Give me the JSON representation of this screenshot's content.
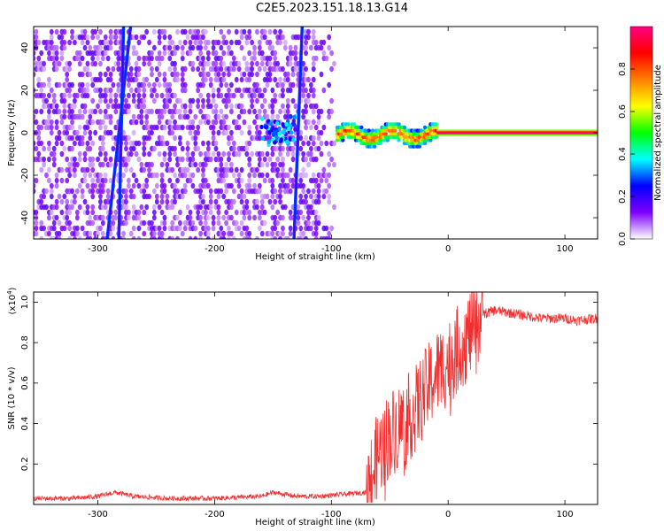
{
  "title": "C2E5.2023.151.18.13.G14",
  "chart_data": [
    {
      "type": "heatmap",
      "xlabel": "Height of straight line (km)",
      "ylabel": "Frequency (Hz)",
      "xlim": [
        -355,
        128
      ],
      "ylim": [
        -50,
        50
      ],
      "xticks": [
        -300,
        -200,
        -100,
        0,
        100
      ],
      "xtick_labels": [
        "-300",
        "-200",
        "-100",
        "0",
        "100"
      ],
      "yticks": [
        -40,
        -20,
        0,
        20,
        40
      ],
      "ytick_labels": [
        "-40",
        "-20",
        "0",
        "20",
        "40"
      ],
      "colorbar": {
        "label": "Normalized spectral amplitude",
        "range": [
          0,
          1
        ],
        "ticks": [
          0.0,
          0.2,
          0.4,
          0.6,
          0.8
        ],
        "tick_labels": [
          "0.0",
          "0.2",
          "0.4",
          "0.6",
          "0.8"
        ],
        "colors": [
          "#ffffff",
          "#7f00ff",
          "#0000ff",
          "#00ffff",
          "#00ff00",
          "#ffff00",
          "#ff7f00",
          "#ff0000",
          "#ff0080"
        ]
      },
      "carrier_line": {
        "frequency": 0,
        "x_start": -10,
        "x_end": 128,
        "amplitude": 1.0
      },
      "streaks": [
        {
          "x_at_ymin": -292,
          "x_at_ymax": -272
        },
        {
          "x_at_ymin": -282,
          "x_at_ymax": -278
        },
        {
          "x_at_ymin": -132,
          "x_at_ymax": -125
        }
      ],
      "noise_extent": [
        -355,
        -95
      ]
    },
    {
      "type": "line",
      "xlabel": "Height of straight line (km)",
      "ylabel": "SNR (10 * v/v)",
      "y_multiplier_label": "(x10",
      "y_multiplier_exponent": "4",
      "y_multiplier_close": ")",
      "xlim": [
        -355,
        128
      ],
      "ylim": [
        0,
        1.05
      ],
      "xticks": [
        -300,
        -200,
        -100,
        0,
        100
      ],
      "xtick_labels": [
        "-300",
        "-200",
        "-100",
        "0",
        "100"
      ],
      "yticks": [
        0.2,
        0.4,
        0.6,
        0.8,
        1.0
      ],
      "ytick_labels": [
        "0.2",
        "0.4",
        "0.6",
        "0.8",
        "1.0"
      ],
      "line_color": "#f03030",
      "series": [
        {
          "x": [
            -355,
            -320,
            -300,
            -285,
            -270,
            -240,
            -200,
            -160,
            -150,
            -140,
            -130,
            -110,
            -90,
            -70,
            -65,
            -60,
            -50,
            -40,
            -30,
            -20,
            -10,
            0,
            10,
            20,
            30,
            40,
            60,
            80,
            100,
            110,
            128
          ],
          "y": [
            0.03,
            0.03,
            0.04,
            0.06,
            0.04,
            0.03,
            0.03,
            0.04,
            0.06,
            0.05,
            0.04,
            0.04,
            0.05,
            0.06,
            0.15,
            0.25,
            0.35,
            0.4,
            0.45,
            0.55,
            0.65,
            0.7,
            0.78,
            0.86,
            0.94,
            0.96,
            0.94,
            0.92,
            0.92,
            0.91,
            0.92
          ]
        }
      ]
    }
  ]
}
